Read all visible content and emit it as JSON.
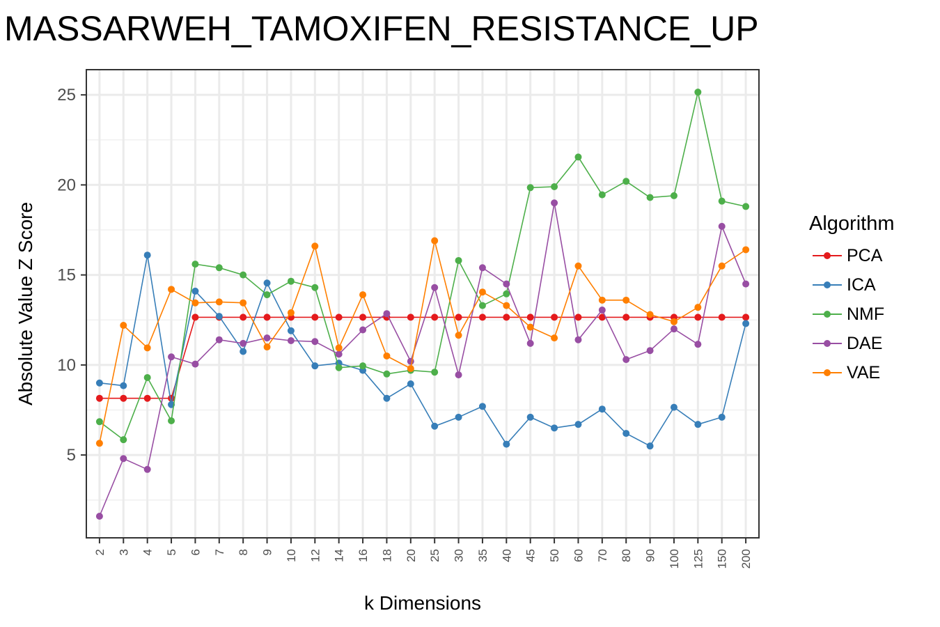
{
  "chart_data": {
    "type": "line",
    "title": "MASSARWEH_TAMOXIFEN_RESISTANCE_UP",
    "xlabel": "k Dimensions",
    "ylabel": "Absolute Value Z Score",
    "categories": [
      "2",
      "3",
      "4",
      "5",
      "6",
      "7",
      "8",
      "9",
      "10",
      "12",
      "14",
      "16",
      "18",
      "20",
      "25",
      "30",
      "35",
      "40",
      "45",
      "50",
      "60",
      "70",
      "80",
      "90",
      "100",
      "125",
      "150",
      "200"
    ],
    "ylim": [
      0.4,
      26.4
    ],
    "yticks": [
      5,
      10,
      15,
      20,
      25
    ],
    "grid": true,
    "legend_title": "Algorithm",
    "legend_position": "right",
    "series": [
      {
        "name": "PCA",
        "color": "#E41A1C",
        "values": [
          8.15,
          8.15,
          8.15,
          8.15,
          12.65,
          12.65,
          12.65,
          12.65,
          12.65,
          12.65,
          12.65,
          12.65,
          12.65,
          12.65,
          12.65,
          12.65,
          12.65,
          12.65,
          12.65,
          12.65,
          12.65,
          12.65,
          12.65,
          12.65,
          12.65,
          12.65,
          12.65,
          12.65
        ]
      },
      {
        "name": "ICA",
        "color": "#377EB8",
        "values": [
          9.0,
          8.85,
          16.1,
          7.8,
          14.1,
          12.7,
          10.75,
          14.55,
          11.9,
          9.95,
          10.1,
          9.7,
          8.15,
          8.95,
          6.6,
          7.1,
          7.7,
          5.6,
          7.1,
          6.5,
          6.7,
          7.55,
          6.2,
          5.5,
          7.65,
          6.7,
          7.1,
          12.3
        ]
      },
      {
        "name": "NMF",
        "color": "#4DAF4A",
        "values": [
          6.85,
          5.85,
          9.3,
          6.9,
          15.6,
          15.4,
          15.0,
          13.9,
          14.65,
          14.3,
          9.85,
          9.95,
          9.5,
          9.7,
          9.6,
          15.8,
          13.3,
          13.95,
          19.85,
          19.9,
          21.55,
          19.45,
          20.2,
          19.3,
          19.4,
          25.15,
          19.1,
          18.8
        ]
      },
      {
        "name": "DAE",
        "color": "#984EA3",
        "values": [
          1.6,
          4.8,
          4.2,
          10.45,
          10.05,
          11.4,
          11.2,
          11.5,
          11.35,
          11.3,
          10.6,
          11.95,
          12.85,
          10.2,
          14.3,
          9.45,
          15.4,
          14.5,
          11.2,
          19.0,
          11.4,
          13.05,
          10.3,
          10.8,
          12.0,
          11.15,
          17.7,
          14.5
        ]
      },
      {
        "name": "VAE",
        "color": "#FF7F00",
        "values": [
          5.65,
          12.2,
          10.95,
          14.2,
          13.45,
          13.5,
          13.45,
          11.0,
          12.9,
          16.6,
          10.95,
          13.9,
          10.5,
          9.8,
          16.9,
          11.65,
          14.05,
          13.3,
          12.1,
          11.5,
          15.5,
          13.6,
          13.6,
          12.8,
          12.4,
          13.2,
          15.5,
          16.4
        ]
      }
    ]
  }
}
